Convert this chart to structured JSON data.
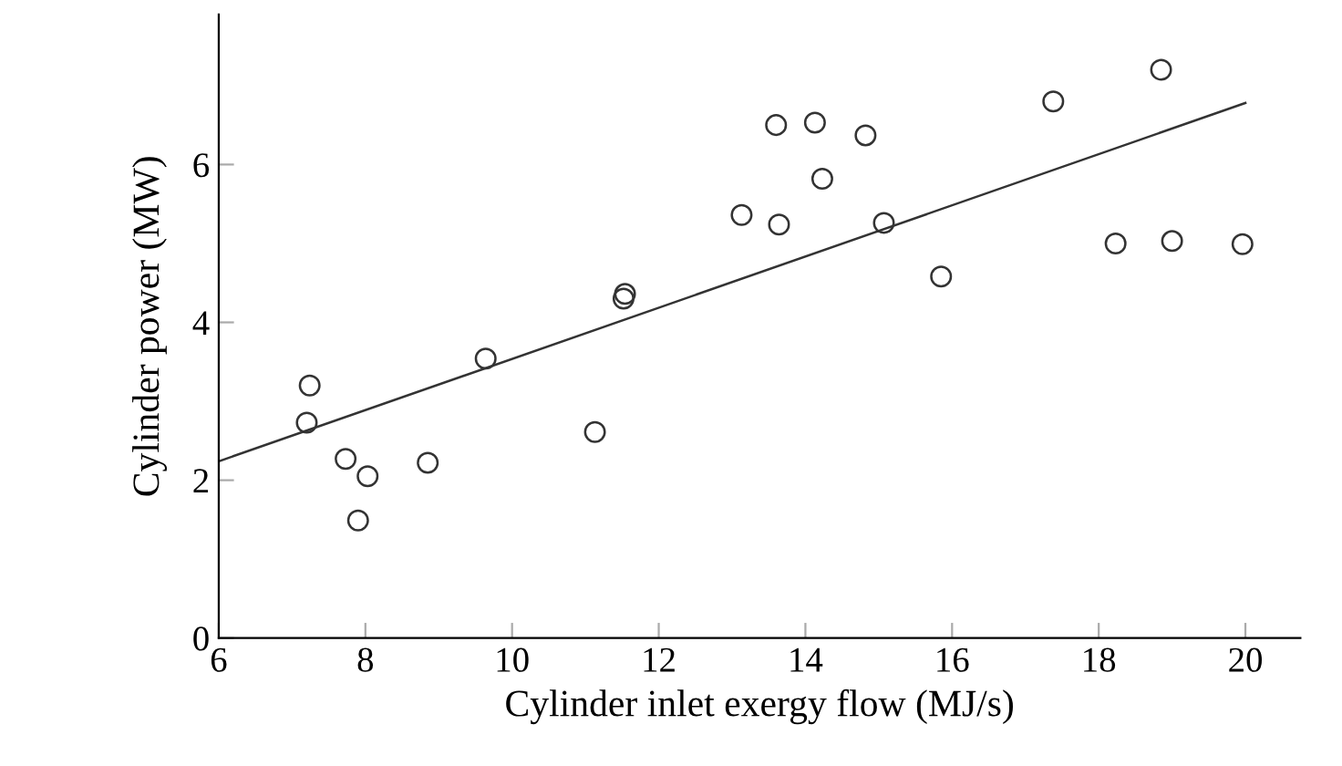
{
  "chart_data": {
    "type": "scatter",
    "xlabel": "Cylinder inlet exergy flow (MJ/s)",
    "ylabel": "Cylinder power (MW)",
    "xlim": [
      6,
      20.75
    ],
    "ylim": [
      0,
      7.9
    ],
    "xticks": [
      6,
      8,
      10,
      12,
      14,
      16,
      18,
      20
    ],
    "yticks": [
      0,
      2,
      4,
      6
    ],
    "grid": false,
    "legend": false,
    "series": [
      {
        "color": "#333333",
        "marker": "circle",
        "x": [
          7.24,
          7.2,
          7.73,
          7.9,
          8.03,
          8.85,
          9.64,
          11.13,
          11.54,
          11.52,
          13.13,
          13.6,
          14.13,
          14.82,
          14.23,
          13.64,
          15.07,
          15.85,
          17.38,
          18.85,
          18.23,
          19.0,
          19.96
        ],
        "values": [
          3.2,
          2.73,
          2.27,
          1.49,
          2.05,
          2.22,
          3.54,
          2.61,
          4.36,
          4.3,
          5.36,
          6.5,
          6.53,
          6.37,
          5.82,
          5.24,
          5.26,
          4.58,
          6.8,
          7.2,
          5.0,
          5.03,
          4.99
        ]
      },
      {
        "type": "line",
        "color": "#333333",
        "marker": "none",
        "line_style": "solid",
        "x": [
          6,
          20
        ],
        "values": [
          2.24,
          6.78
        ]
      }
    ]
  }
}
